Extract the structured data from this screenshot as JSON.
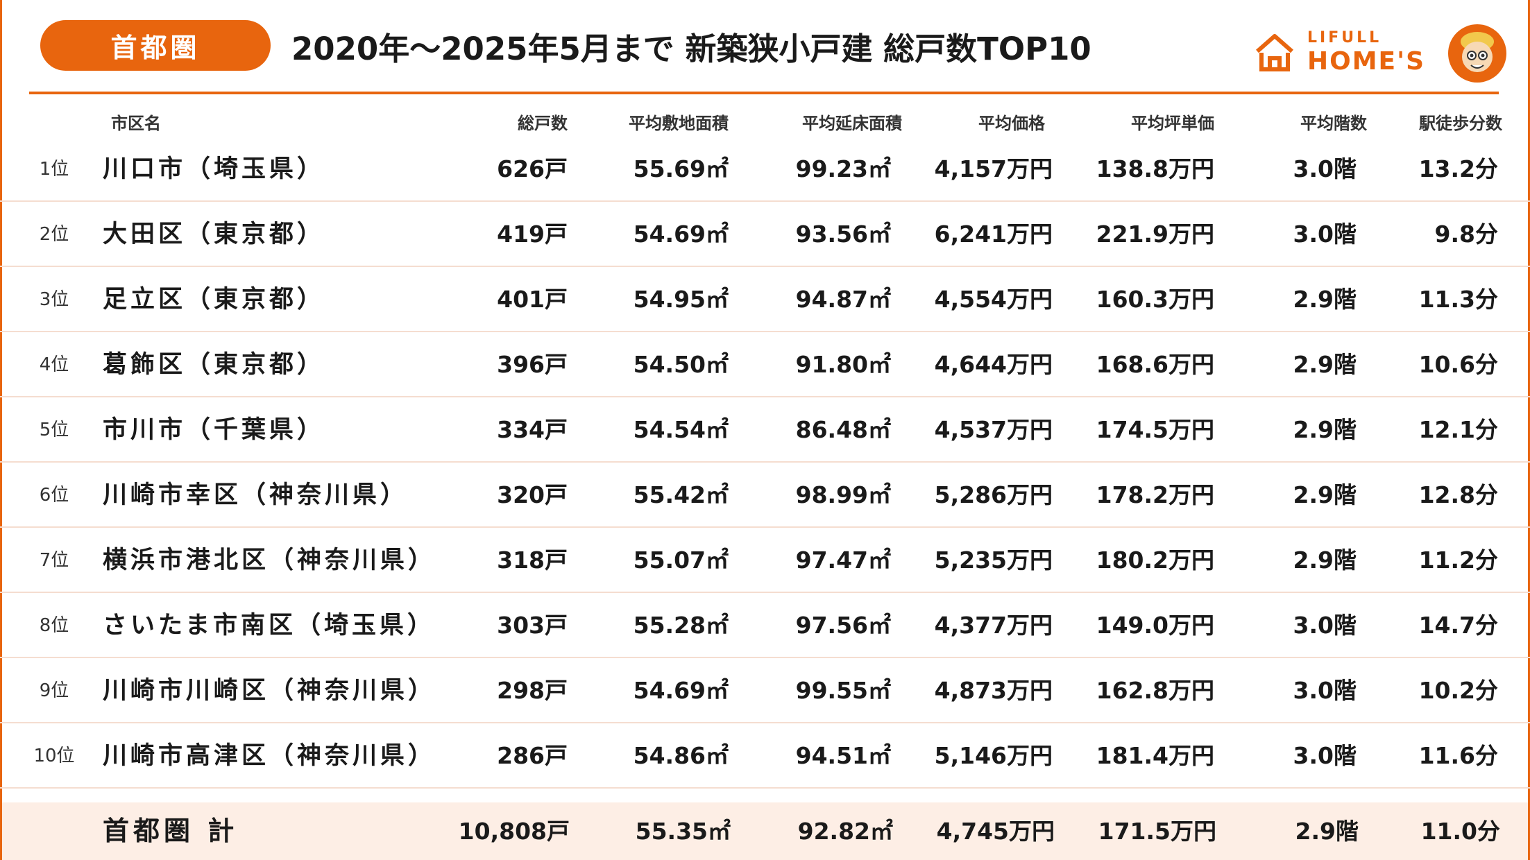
{
  "header": {
    "region_badge": "首都圏",
    "title": "2020年〜2025年5月まで 新築狭小戸建 総戸数TOP10",
    "logo_top": "LIFULL",
    "logo_bottom": "HOME'S"
  },
  "columns": [
    "市区名",
    "総戸数",
    "平均敷地面積",
    "平均延床面積",
    "平均価格",
    "平均坪単価",
    "平均階数",
    "駅徒歩分数"
  ],
  "rows": [
    {
      "rank": "1位",
      "name": "川口市（埼玉県）",
      "total": "626戸",
      "land": "55.69㎡",
      "floor": "99.23㎡",
      "price": "4,157万円",
      "tsubo": "138.8万円",
      "stories": "3.0階",
      "walk": "13.2分"
    },
    {
      "rank": "2位",
      "name": "大田区（東京都）",
      "total": "419戸",
      "land": "54.69㎡",
      "floor": "93.56㎡",
      "price": "6,241万円",
      "tsubo": "221.9万円",
      "stories": "3.0階",
      "walk": "9.8分"
    },
    {
      "rank": "3位",
      "name": "足立区（東京都）",
      "total": "401戸",
      "land": "54.95㎡",
      "floor": "94.87㎡",
      "price": "4,554万円",
      "tsubo": "160.3万円",
      "stories": "2.9階",
      "walk": "11.3分"
    },
    {
      "rank": "4位",
      "name": "葛飾区（東京都）",
      "total": "396戸",
      "land": "54.50㎡",
      "floor": "91.80㎡",
      "price": "4,644万円",
      "tsubo": "168.6万円",
      "stories": "2.9階",
      "walk": "10.6分"
    },
    {
      "rank": "5位",
      "name": "市川市（千葉県）",
      "total": "334戸",
      "land": "54.54㎡",
      "floor": "86.48㎡",
      "price": "4,537万円",
      "tsubo": "174.5万円",
      "stories": "2.9階",
      "walk": "12.1分"
    },
    {
      "rank": "6位",
      "name": "川崎市幸区（神奈川県）",
      "total": "320戸",
      "land": "55.42㎡",
      "floor": "98.99㎡",
      "price": "5,286万円",
      "tsubo": "178.2万円",
      "stories": "2.9階",
      "walk": "12.8分"
    },
    {
      "rank": "7位",
      "name": "横浜市港北区（神奈川県）",
      "total": "318戸",
      "land": "55.07㎡",
      "floor": "97.47㎡",
      "price": "5,235万円",
      "tsubo": "180.2万円",
      "stories": "2.9階",
      "walk": "11.2分"
    },
    {
      "rank": "8位",
      "name": "さいたま市南区（埼玉県）",
      "total": "303戸",
      "land": "55.28㎡",
      "floor": "97.56㎡",
      "price": "4,377万円",
      "tsubo": "149.0万円",
      "stories": "3.0階",
      "walk": "14.7分"
    },
    {
      "rank": "9位",
      "name": "川崎市川崎区（神奈川県）",
      "total": "298戸",
      "land": "54.69㎡",
      "floor": "99.55㎡",
      "price": "4,873万円",
      "tsubo": "162.8万円",
      "stories": "3.0階",
      "walk": "10.2分"
    },
    {
      "rank": "10位",
      "name": "川崎市高津区（神奈川県）",
      "total": "286戸",
      "land": "54.86㎡",
      "floor": "94.51㎡",
      "price": "5,146万円",
      "tsubo": "181.4万円",
      "stories": "3.0階",
      "walk": "11.6分"
    }
  ],
  "total": {
    "name": "首都圏 計",
    "total": "10,808戸",
    "land": "55.35㎡",
    "floor": "92.82㎡",
    "price": "4,745万円",
    "tsubo": "171.5万円",
    "stories": "2.9階",
    "walk": "11.0分"
  },
  "colors": {
    "accent": "#e8650e",
    "total_row_bg": "#fdeee5",
    "row_divider": "#f5ddd0"
  }
}
